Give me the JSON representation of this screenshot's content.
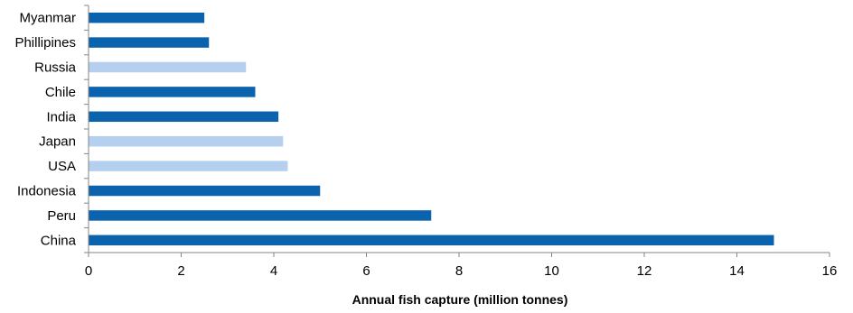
{
  "chart_data": {
    "type": "bar",
    "orientation": "horizontal",
    "title": "",
    "xlabel": "Annual fish capture (million tonnes)",
    "ylabel": "",
    "xlim": [
      0,
      16
    ],
    "xticks": [
      0,
      2,
      4,
      6,
      8,
      10,
      12,
      14,
      16
    ],
    "grid": false,
    "legend": "none",
    "categories": [
      "Myanmar",
      "Phillipines",
      "Russia",
      "Chile",
      "India",
      "Japan",
      "USA",
      "Indonesia",
      "Peru",
      "China"
    ],
    "values": [
      2.5,
      2.6,
      3.4,
      3.6,
      4.1,
      4.2,
      4.3,
      5.0,
      7.4,
      14.8
    ],
    "bar_colors": [
      "#0b63ae",
      "#0b63ae",
      "#b4d0ee",
      "#0b63ae",
      "#0b63ae",
      "#b4d0ee",
      "#b4d0ee",
      "#0b63ae",
      "#0b63ae",
      "#0b63ae"
    ],
    "colors": {
      "dark": "#0b63ae",
      "light": "#b4d0ee",
      "axis": "#868686"
    }
  }
}
